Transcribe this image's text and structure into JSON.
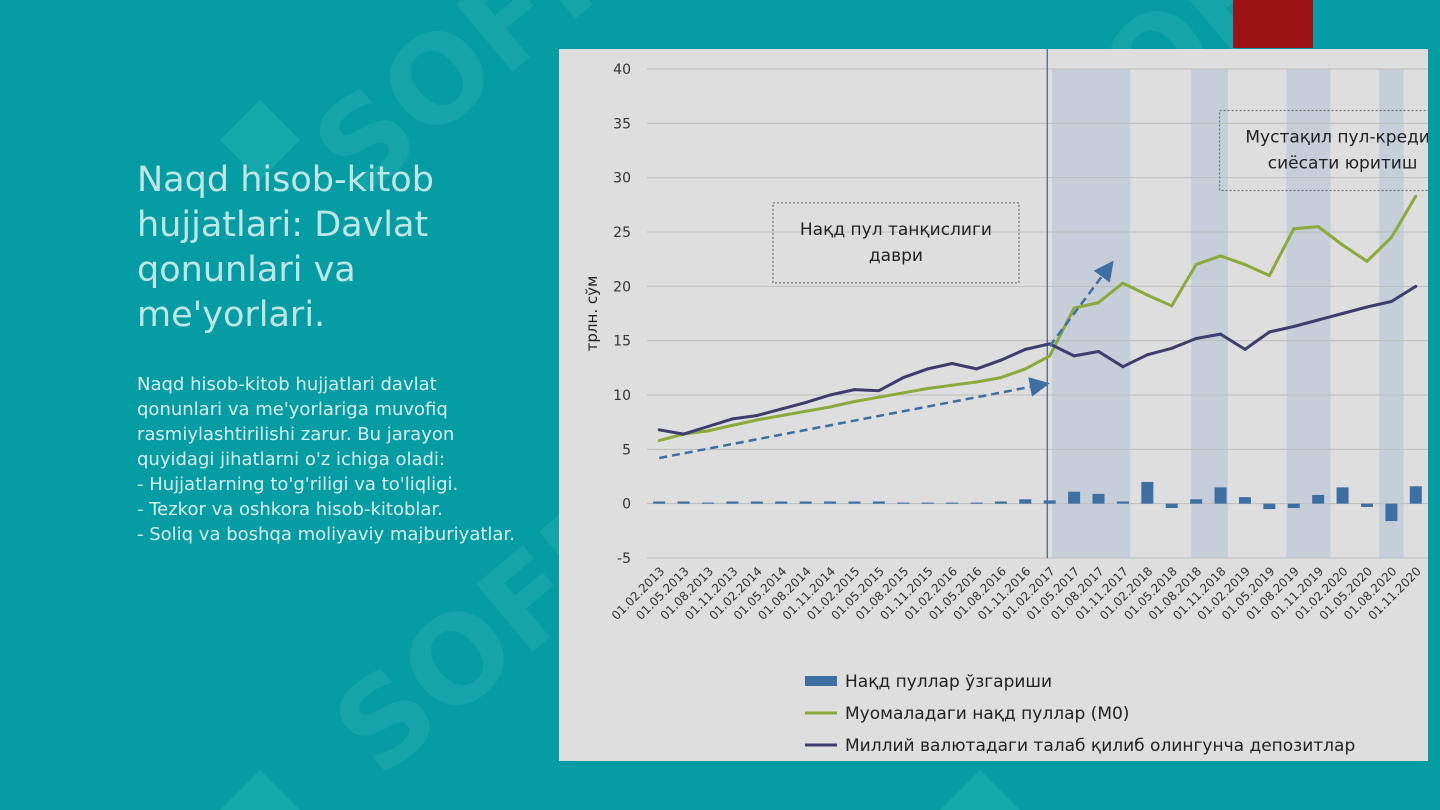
{
  "slide": {
    "title": "Naqd hisob-kitob hujjatlari: Davlat qonunlari va me'yorlari.",
    "body": [
      "Naqd hisob-kitob hujjatlari davlat qonunlari va me'yorlariga muvofiq rasmiylashtirilishi zarur. Bu jarayon quyidagi jihatlarni o'z ichiga oladi:",
      "- Hujjatlarning to'g'riligi va to'liqligi.",
      "- Tezkor va oshkora hisob-kitoblar.",
      "- Soliq va boshqa moliyaviy majburiyatlar."
    ],
    "watermark_text": "SOFF",
    "colors": {
      "background": "#069ca3",
      "accent": "#9b1114",
      "title": "#bfe6e6"
    }
  },
  "chart_data": {
    "type": "line",
    "ylabel": "трлн. сўм",
    "ylim": [
      -5,
      40
    ],
    "yticks": [
      -5,
      0,
      5,
      10,
      15,
      20,
      25,
      30,
      35,
      40
    ],
    "grid": true,
    "legend_position": "bottom",
    "x_tick_labels": [
      "01.02.2013",
      "01.05.2013",
      "01.08.2013",
      "01.11.2013",
      "01.02.2014",
      "01.05.2014",
      "01.08.2014",
      "01.11.2014",
      "01.02.2015",
      "01.05.2015",
      "01.08.2015",
      "01.11.2015",
      "01.02.2016",
      "01.05.2016",
      "01.08.2016",
      "01.11.2016",
      "01.02.2017",
      "01.05.2017",
      "01.08.2017",
      "01.11.2017",
      "01.02.2018",
      "01.05.2018",
      "01.08.2018",
      "01.11.2018",
      "01.02.2019",
      "01.05.2019",
      "01.08.2019",
      "01.11.2019",
      "01.02.2020",
      "01.05.2020",
      "01.08.2020",
      "01.11.2020"
    ],
    "shaded_periods": [
      [
        16.6,
        19.8
      ],
      [
        22.3,
        23.8
      ],
      [
        26.2,
        28
      ],
      [
        30,
        31
      ]
    ],
    "divider_x": 15.9,
    "annotations": [
      {
        "text": [
          "Нақд пул танқислиги",
          "даври"
        ],
        "x": 9.7,
        "y": 24
      },
      {
        "text": [
          "Мустақил пул-кредит",
          "сиёсати юритиш"
        ],
        "x": 28,
        "y": 32.5
      }
    ],
    "trend_arrows": [
      {
        "from": [
          0,
          4.2
        ],
        "to": [
          15.8,
          11
        ]
      },
      {
        "from": [
          16,
          14.5
        ],
        "to": [
          18.5,
          22
        ]
      }
    ],
    "series": [
      {
        "name": "Нақд пуллар ўзгариши",
        "kind": "bar",
        "color": "#3d6fa3",
        "values": [
          0.2,
          0.2,
          0.1,
          0.2,
          0.2,
          0.2,
          0.2,
          0.2,
          0.2,
          0.2,
          0.1,
          0.1,
          0.1,
          0.1,
          0.2,
          0.4,
          0.3,
          1.1,
          0.9,
          0.2,
          2.0,
          -0.4,
          0.4,
          1.5,
          0.6,
          -0.5,
          -0.4,
          0.8,
          1.5,
          -0.3,
          -1.6,
          1.6
        ]
      },
      {
        "name": "Муомаладаги нақд пуллар (M0)",
        "kind": "line",
        "color": "#8aaa3c",
        "values": [
          5.8,
          6.4,
          6.7,
          7.2,
          7.7,
          8.1,
          8.5,
          8.9,
          9.4,
          9.8,
          10.2,
          10.6,
          10.9,
          11.2,
          11.6,
          12.4,
          13.6,
          18.0,
          18.5,
          20.3,
          19.2,
          18.2,
          22.0,
          22.8,
          22.0,
          21.0,
          25.3,
          25.5,
          23.8,
          22.3,
          24.5,
          28.3
        ]
      },
      {
        "name": "Миллий валютадаги талаб қилиб олингунча депозитлар",
        "kind": "line",
        "color": "#3d3d6e",
        "values": [
          6.8,
          6.4,
          7.1,
          7.8,
          8.1,
          8.7,
          9.3,
          10.0,
          10.5,
          10.4,
          11.6,
          12.4,
          12.9,
          12.4,
          13.2,
          14.2,
          14.7,
          13.6,
          14.0,
          12.6,
          13.7,
          14.3,
          15.2,
          15.6,
          14.2,
          15.8,
          16.3,
          16.9,
          17.5,
          18.1,
          18.6,
          20.0
        ]
      }
    ]
  }
}
